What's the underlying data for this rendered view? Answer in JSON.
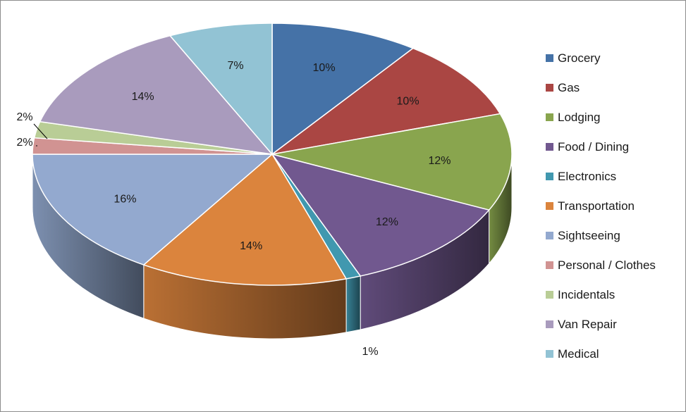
{
  "chart_data": {
    "type": "pie",
    "style": "3d",
    "title": "",
    "legend_position": "right",
    "slices": [
      {
        "label": "Grocery",
        "value": 10,
        "display": "10%",
        "color": "#4572A7"
      },
      {
        "label": "Gas",
        "value": 10,
        "display": "10%",
        "color": "#AA4643"
      },
      {
        "label": "Lodging",
        "value": 12,
        "display": "12%",
        "color": "#89A54E"
      },
      {
        "label": "Food / Dining",
        "value": 12,
        "display": "12%",
        "color": "#71588F"
      },
      {
        "label": "Electronics",
        "value": 1,
        "display": "1%",
        "color": "#4198AF"
      },
      {
        "label": "Transportation",
        "value": 14,
        "display": "14%",
        "color": "#DB843D"
      },
      {
        "label": "Sightseeing",
        "value": 16,
        "display": "16%",
        "color": "#93A9CF"
      },
      {
        "label": "Personal / Clothes",
        "value": 2,
        "display": "2%",
        "color": "#D19392"
      },
      {
        "label": "Incidentals",
        "value": 2,
        "display": "2%",
        "color": "#B9CD96"
      },
      {
        "label": "Van Repair",
        "value": 14,
        "display": "14%",
        "color": "#A99BBD"
      },
      {
        "label": "Medical",
        "value": 7,
        "display": "7%",
        "color": "#92C3D4"
      }
    ]
  }
}
